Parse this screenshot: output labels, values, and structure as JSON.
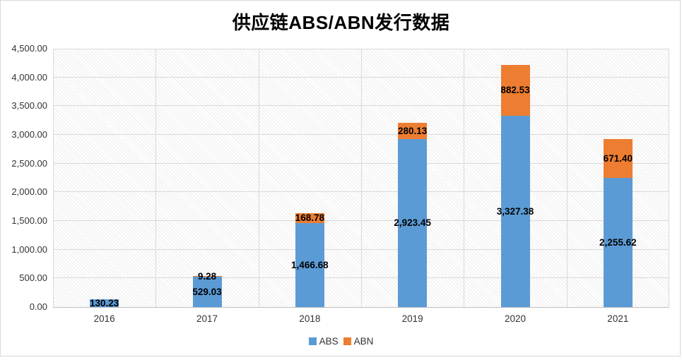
{
  "chart_data": {
    "type": "bar",
    "stacked": true,
    "title": "供应链ABS/ABN发行数据",
    "categories": [
      "2016",
      "2017",
      "2018",
      "2019",
      "2020",
      "2021"
    ],
    "series": [
      {
        "name": "ABS",
        "color": "#5B9BD5",
        "values": [
          130.23,
          529.03,
          1466.68,
          2923.45,
          3327.38,
          2255.62
        ],
        "labels": [
          "130.23",
          "529.03",
          "1,466.68",
          "2,923.45",
          "3,327.38",
          "2,255.62"
        ]
      },
      {
        "name": "ABN",
        "color": "#ED7D31",
        "values": [
          null,
          9.28,
          168.78,
          280.13,
          882.53,
          671.4
        ],
        "labels": [
          null,
          "9.28",
          "168.78",
          "280.13",
          "882.53",
          "671.40"
        ]
      }
    ],
    "xlabel": "",
    "ylabel": "",
    "ylim": [
      0,
      4500
    ],
    "ytick_step": 500,
    "yticks": [
      "0.00",
      "500.00",
      "1,000.00",
      "1,500.00",
      "2,000.00",
      "2,500.00",
      "3,000.00",
      "3,500.00",
      "4,000.00",
      "4,500.00"
    ],
    "grid": true,
    "plot_background": "diagonal-hatch",
    "gridline_color": "#d9d9d9",
    "axis_line_color": "#bfbfbf",
    "legend_position": "bottom"
  }
}
